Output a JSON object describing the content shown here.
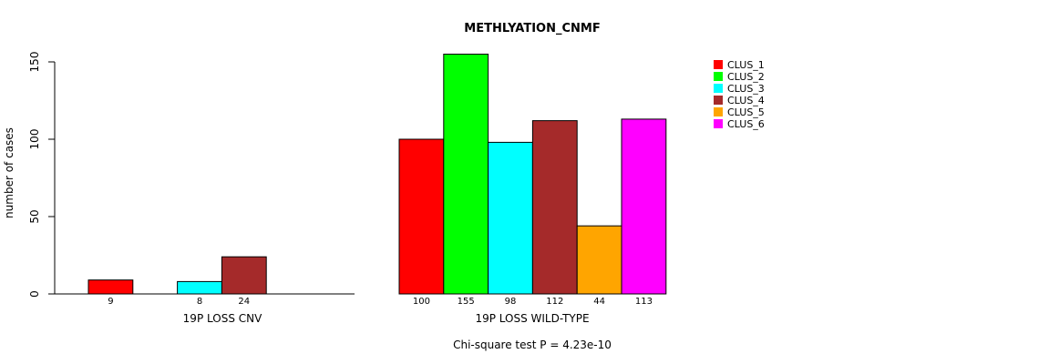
{
  "chart_data": {
    "type": "bar",
    "title": "METHLYATION_CNMF",
    "ylabel": "number of cases",
    "ylim": [
      0,
      150
    ],
    "yticks": [
      0,
      50,
      100,
      150
    ],
    "footnote": "Chi-square test P = 4.23e-10",
    "series": [
      {
        "name": "CLUS_1",
        "color": "#ff0000"
      },
      {
        "name": "CLUS_2",
        "color": "#00ff00"
      },
      {
        "name": "CLUS_3",
        "color": "#00ffff"
      },
      {
        "name": "CLUS_4",
        "color": "#a52a2a"
      },
      {
        "name": "CLUS_5",
        "color": "#ffa500"
      },
      {
        "name": "CLUS_6",
        "color": "#ff00ff"
      }
    ],
    "groups": [
      {
        "name": "19P LOSS CNV",
        "values": [
          9,
          0,
          8,
          24,
          0,
          0
        ],
        "labels": [
          "9",
          "",
          "8",
          "24",
          "",
          ""
        ]
      },
      {
        "name": "19P LOSS WILD-TYPE",
        "values": [
          100,
          155,
          98,
          112,
          44,
          113
        ],
        "labels": [
          "100",
          "155",
          "98",
          "112",
          "44",
          "113"
        ]
      }
    ]
  }
}
